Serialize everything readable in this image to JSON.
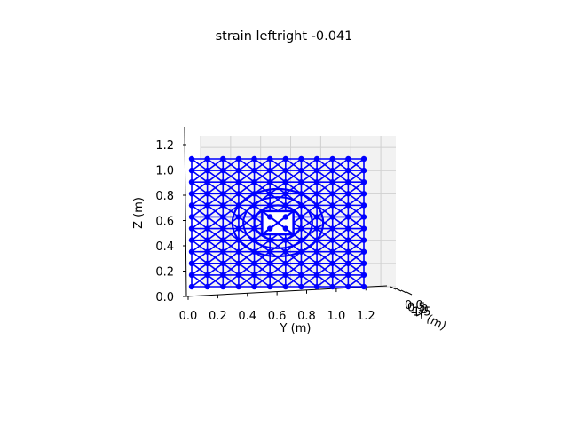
{
  "chart_data": {
    "type": "3d-wireframe",
    "title": "strain leftright -0.041",
    "ylabel_axis": "Y (m)",
    "zlabel_axis": "Z (m)",
    "xlabel_axis": "X (m)",
    "y_ticks": [
      "0.0",
      "0.2",
      "0.4",
      "0.6",
      "0.8",
      "1.0",
      "1.2"
    ],
    "z_ticks": [
      "0.0",
      "0.2",
      "0.4",
      "0.6",
      "0.8",
      "1.0",
      "1.2"
    ],
    "x_ticks_visible": [
      "0.0",
      "0.5",
      "1.0",
      "1.5"
    ],
    "ylim": [
      0,
      1.3
    ],
    "zlim": [
      0,
      1.3
    ],
    "lattice": {
      "nodes_per_side": 12,
      "y_range": [
        0.0,
        1.1
      ],
      "z_range": [
        0.0,
        1.1
      ],
      "hole_center": [
        0.55,
        0.55
      ],
      "hole_half_size": 0.1,
      "color": "#0000ff"
    },
    "grid": true,
    "pane_color": "#f2f2f2"
  }
}
